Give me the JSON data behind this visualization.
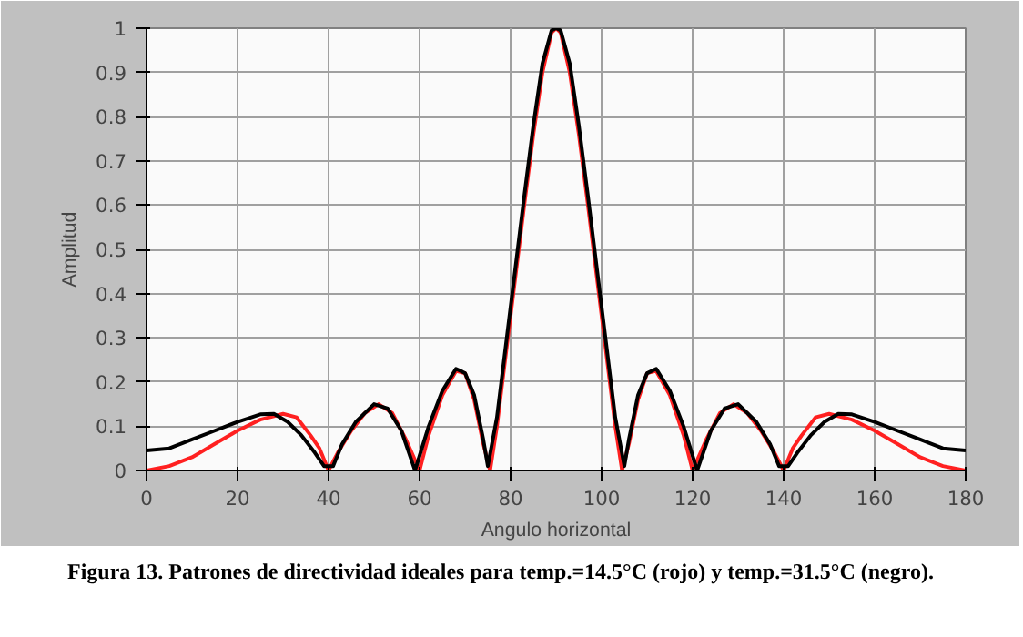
{
  "chart_data": {
    "type": "line",
    "xlabel": "Angulo horizontal",
    "ylabel": "Amplitud",
    "xlim": [
      0,
      180
    ],
    "ylim": [
      0,
      1
    ],
    "xticks": [
      0,
      20,
      40,
      60,
      80,
      100,
      120,
      140,
      160,
      180
    ],
    "yticks": [
      0,
      0.1,
      0.2,
      0.3,
      0.4,
      0.5,
      0.6,
      0.7,
      0.8,
      0.9,
      1
    ],
    "grid": true,
    "line_style": "solid",
    "annotations": [
      "Figura 13. Patrones de directividad  ideales para temp.=14.5°C (rojo) y temp.=31.5°C (negro)."
    ],
    "series": [
      {
        "color": "#ff2020",
        "x": [
          0,
          5,
          10,
          15,
          20,
          25,
          30,
          33,
          36,
          38,
          40,
          42,
          45,
          48,
          51,
          54,
          57,
          60,
          62,
          65,
          68,
          70,
          72,
          74,
          75.5,
          77,
          80,
          83,
          85,
          87,
          89,
          90,
          91,
          93,
          95,
          97,
          100,
          103,
          104.5,
          106,
          108,
          110,
          112,
          115,
          118,
          120,
          123,
          126,
          129,
          132,
          135,
          138,
          140,
          142,
          144,
          147,
          150,
          155,
          160,
          165,
          170,
          175,
          180
        ],
        "values": [
          0,
          0.01,
          0.03,
          0.06,
          0.09,
          0.115,
          0.128,
          0.12,
          0.08,
          0.05,
          0,
          0.04,
          0.09,
          0.13,
          0.15,
          0.13,
          0.07,
          0,
          0.08,
          0.17,
          0.225,
          0.22,
          0.16,
          0.06,
          0,
          0.1,
          0.35,
          0.6,
          0.76,
          0.9,
          0.99,
          1,
          0.99,
          0.9,
          0.76,
          0.6,
          0.35,
          0.1,
          0,
          0.06,
          0.16,
          0.22,
          0.225,
          0.17,
          0.08,
          0,
          0.07,
          0.13,
          0.15,
          0.13,
          0.09,
          0.04,
          0,
          0.05,
          0.08,
          0.12,
          0.128,
          0.115,
          0.09,
          0.06,
          0.03,
          0.01,
          0
        ]
      },
      {
        "color": "#000000",
        "x": [
          0,
          5,
          10,
          15,
          20,
          25,
          28,
          31,
          34,
          37,
          39,
          41,
          43,
          46,
          50,
          53,
          56,
          59,
          62,
          65,
          68,
          70,
          72,
          74,
          75,
          77,
          80,
          83,
          85,
          87,
          89,
          90,
          91,
          93,
          95,
          97,
          100,
          103,
          105,
          106,
          108,
          110,
          112,
          115,
          118,
          121,
          124,
          127,
          130,
          134,
          137,
          139,
          141,
          143,
          146,
          149,
          152,
          155,
          160,
          165,
          170,
          175,
          180
        ],
        "values": [
          0.045,
          0.05,
          0.07,
          0.09,
          0.11,
          0.127,
          0.128,
          0.11,
          0.08,
          0.04,
          0.01,
          0.01,
          0.06,
          0.11,
          0.15,
          0.14,
          0.09,
          0,
          0.1,
          0.18,
          0.23,
          0.22,
          0.17,
          0.07,
          0.01,
          0.12,
          0.37,
          0.62,
          0.78,
          0.92,
          0.995,
          1,
          0.995,
          0.92,
          0.78,
          0.62,
          0.37,
          0.12,
          0.01,
          0.07,
          0.17,
          0.22,
          0.23,
          0.18,
          0.1,
          0,
          0.09,
          0.14,
          0.15,
          0.11,
          0.06,
          0.01,
          0.01,
          0.04,
          0.08,
          0.11,
          0.128,
          0.127,
          0.11,
          0.09,
          0.07,
          0.05,
          0.045
        ]
      }
    ]
  }
}
